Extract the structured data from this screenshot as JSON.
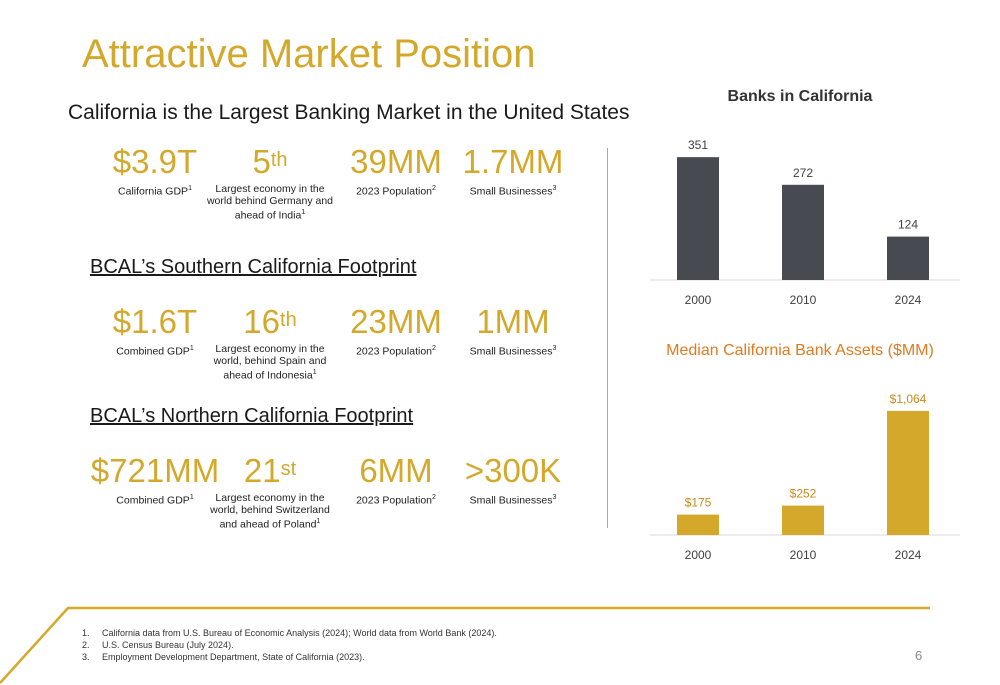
{
  "title": "Attractive Market Position",
  "subtitle": "California is the Largest Banking Market in the United States",
  "sections": [
    {
      "heading": "",
      "stats": [
        {
          "value": "$3.9T",
          "sup": "",
          "label": "California GDP",
          "note": "1"
        },
        {
          "value": "5",
          "sup": "th",
          "label": "Largest economy in the world behind Germany and ahead of India",
          "note": "1"
        },
        {
          "value": "39MM",
          "sup": "",
          "label": "2023 Population",
          "note": "2"
        },
        {
          "value": "1.7MM",
          "sup": "",
          "label": "Small Businesses",
          "note": "3"
        }
      ]
    },
    {
      "heading": "BCAL’s Southern California Footprint",
      "stats": [
        {
          "value": "$1.6T",
          "sup": "",
          "label": "Combined GDP",
          "note": "1"
        },
        {
          "value": "16",
          "sup": "th",
          "label": "Largest economy in the world, behind Spain and ahead of Indonesia",
          "note": "1"
        },
        {
          "value": "23MM",
          "sup": "",
          "label": "2023 Population",
          "note": "2"
        },
        {
          "value": "1MM",
          "sup": "",
          "label": "Small Businesses",
          "note": "3"
        }
      ]
    },
    {
      "heading": "BCAL’s Northern California Footprint",
      "stats": [
        {
          "value": "$721MM",
          "sup": "",
          "label": "Combined GDP",
          "note": "1"
        },
        {
          "value": "21",
          "sup": "st",
          "label": "Largest economy in the world, behind Switzerland and ahead of Poland",
          "note": "1"
        },
        {
          "value": "6MM",
          "sup": "",
          "label": "2023 Population",
          "note": "2"
        },
        {
          "value": ">300K",
          "sup": "",
          "label": "Small Businesses",
          "note": "3"
        }
      ]
    }
  ],
  "colors": {
    "gold": "#D4A82B",
    "dark_bar": "#474A51",
    "orange_title": "#E07B1F",
    "label_gold": "#C98A1C"
  },
  "chart_data": [
    {
      "type": "bar",
      "title": "Banks in California",
      "categories": [
        "2000",
        "2010",
        "2024"
      ],
      "values": [
        351,
        272,
        124
      ],
      "data_labels": [
        "351",
        "272",
        "124"
      ],
      "ylim": [
        0,
        400
      ],
      "bar_color": "#474A51"
    },
    {
      "type": "bar",
      "title": "Median California Bank Assets ($MM)",
      "categories": [
        "2000",
        "2010",
        "2024"
      ],
      "values": [
        175,
        252,
        1064
      ],
      "data_labels": [
        "$175",
        "$252",
        "$1,064"
      ],
      "ylim": [
        0,
        1200
      ],
      "bar_color": "#D4A82B"
    }
  ],
  "footnotes": [
    {
      "num": "1.",
      "text": "California data from U.S. Bureau of Economic Analysis (2024); World data from World Bank (2024)."
    },
    {
      "num": "2.",
      "text": "U.S. Census Bureau (July 2024)."
    },
    {
      "num": "3.",
      "text": "Employment Development Department, State of California (2023)."
    }
  ],
  "page_number": "6"
}
